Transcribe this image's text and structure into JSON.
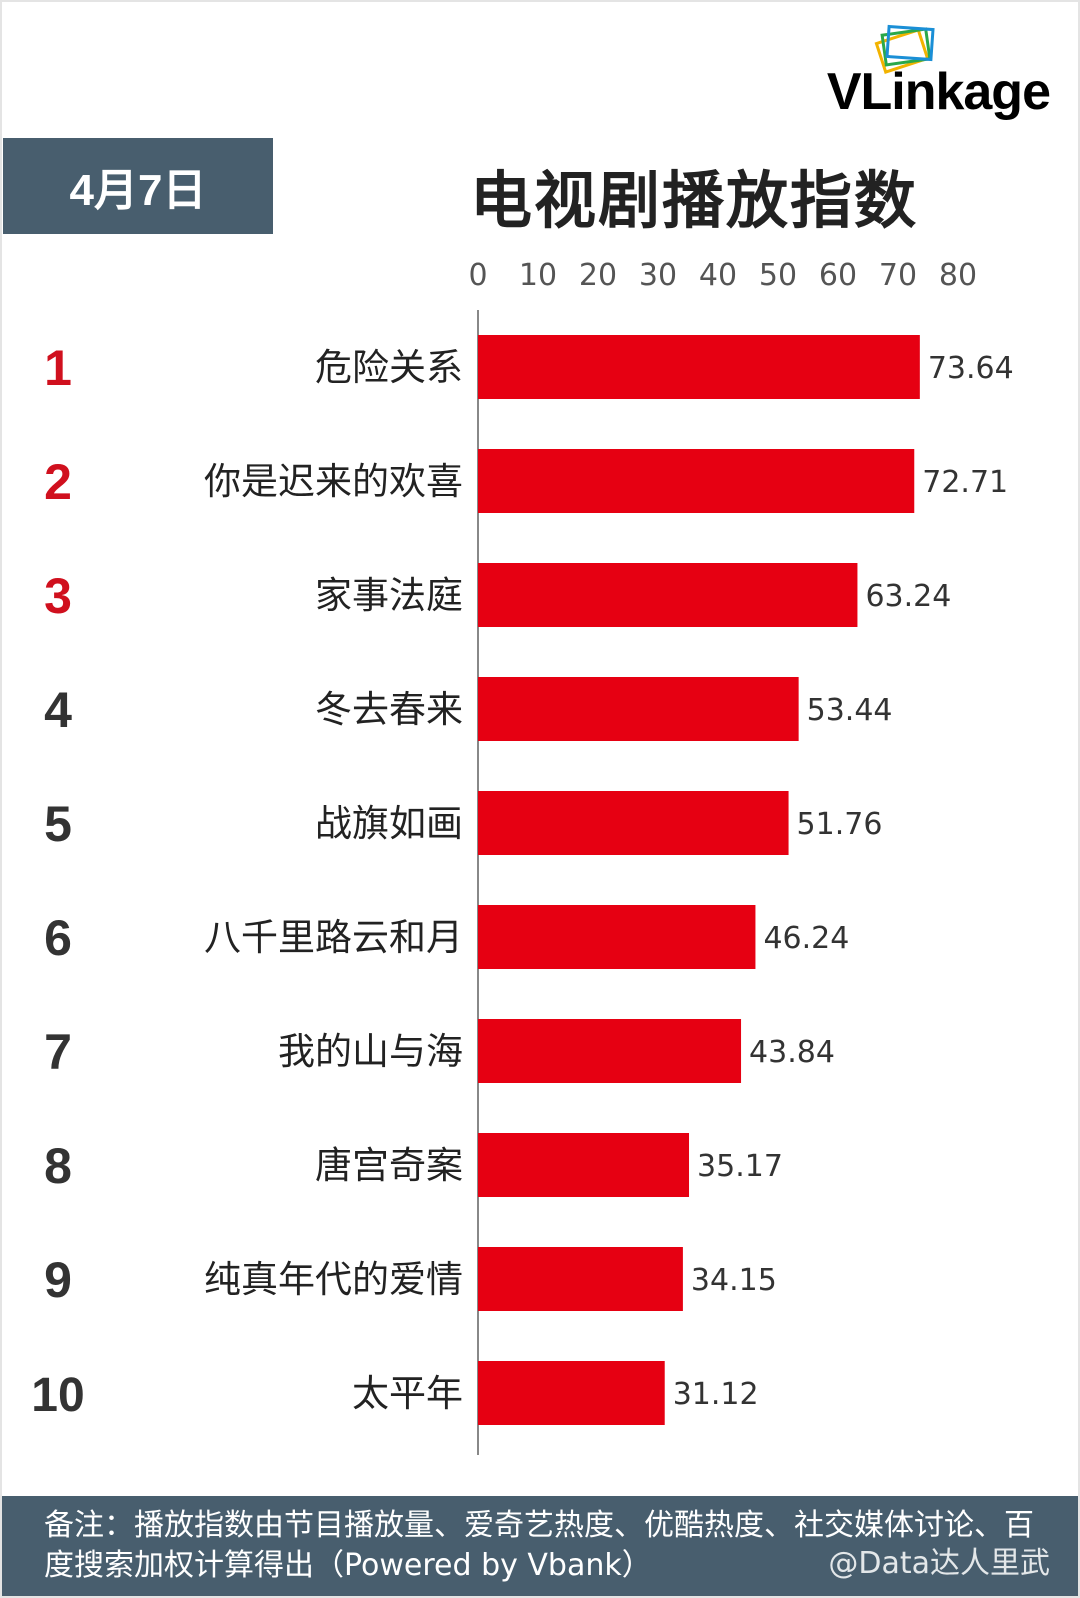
{
  "brand": {
    "logo_text": "VLinkage"
  },
  "date": "4月7日",
  "chart_data": {
    "type": "bar",
    "orientation": "horizontal",
    "title": "电视剧播放指数",
    "xlim": [
      0,
      80
    ],
    "xticks": [
      0,
      10,
      20,
      30,
      40,
      50,
      60,
      70,
      80
    ],
    "grid": false,
    "ranks": [
      "1",
      "2",
      "3",
      "4",
      "5",
      "6",
      "7",
      "8",
      "9",
      "10"
    ],
    "categories": [
      "危险关系",
      "你是迟来的欢喜",
      "家事法庭",
      "冬去春来",
      "战旗如画",
      "八千里路云和月",
      "我的山与海",
      "唐宫奇案",
      "纯真年代的爱情",
      "太平年"
    ],
    "values": [
      73.64,
      72.71,
      63.24,
      53.44,
      51.76,
      46.24,
      43.84,
      35.17,
      34.15,
      31.12
    ],
    "value_labels": [
      "73.64",
      "72.71",
      "63.24",
      "53.44",
      "51.76",
      "46.24",
      "43.84",
      "35.17",
      "34.15",
      "31.12"
    ],
    "bar_color": "#e60012",
    "top_rank_color": "#d0101e",
    "rank_color": "#333333"
  },
  "footer": {
    "note": "备注：播放指数由节目播放量、爱奇艺热度、优酷热度、社交媒体讨论、百度搜索加权计算得出（Powered by Vbank）",
    "watermark": "@Data达人里武"
  }
}
